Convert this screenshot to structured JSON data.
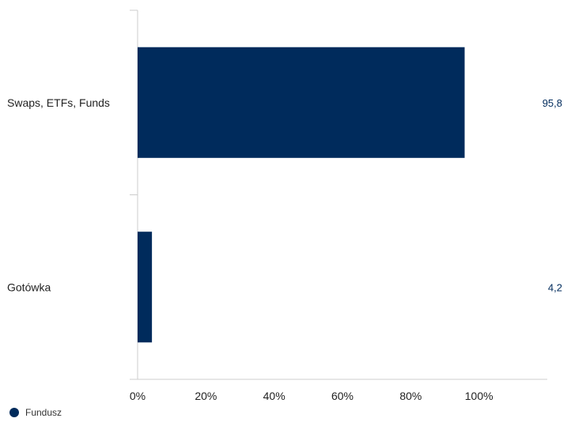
{
  "chart_data": {
    "type": "bar",
    "orientation": "horizontal",
    "categories": [
      "Swaps, ETFs, Funds",
      "Gotówka"
    ],
    "series": [
      {
        "name": "Fundusz",
        "values": [
          95.8,
          4.2
        ],
        "value_labels": [
          "95,8",
          "4,2"
        ],
        "color": "#002b5c"
      }
    ],
    "xlim": [
      0,
      120
    ],
    "xticks": [
      0,
      20,
      40,
      60,
      80,
      100
    ],
    "xtick_labels": [
      "0%",
      "20%",
      "40%",
      "60%",
      "80%",
      "100%"
    ],
    "grid": false,
    "legend_position": "bottom-left",
    "title": "",
    "xlabel": "",
    "ylabel": ""
  }
}
